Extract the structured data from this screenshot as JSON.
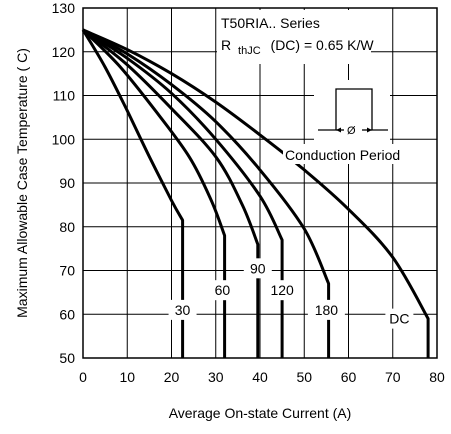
{
  "chart_data": {
    "type": "line",
    "title": "",
    "xlabel": "Average On-state Current (A)",
    "ylabel": "Maximum Allowable Case Temperature ( C)",
    "xlim": [
      0,
      80
    ],
    "ylim": [
      50,
      130
    ],
    "x_ticks": [
      "0",
      "10",
      "20",
      "30",
      "40",
      "50",
      "60",
      "70",
      "80"
    ],
    "y_ticks": [
      "50",
      "60",
      "70",
      "80",
      "90",
      "100",
      "110",
      "120",
      "130"
    ],
    "grid": true,
    "annotations": {
      "series_line": "T50RIA.. Series",
      "rth_prefix": "R",
      "rth_sub": "thJC",
      "rth_value": "(DC) = 0.65 K/W",
      "conduction_symbol": "Ø",
      "conduction_label": "Conduction Period"
    },
    "series": [
      {
        "name": "30",
        "x": [
          0,
          5,
          10,
          15,
          20,
          22.5
        ],
        "y": [
          125,
          116.5,
          106.5,
          96,
          86,
          81.5
        ]
      },
      {
        "name": "60",
        "x": [
          0,
          8,
          16,
          24,
          29,
          32
        ],
        "y": [
          125,
          117,
          107,
          96,
          86,
          78
        ]
      },
      {
        "name": "90",
        "x": [
          0,
          10,
          20,
          30,
          36,
          39.5
        ],
        "y": [
          125,
          117,
          107,
          96,
          85,
          76
        ]
      },
      {
        "name": "120",
        "x": [
          0,
          10,
          20,
          30,
          40,
          45
        ],
        "y": [
          125,
          118.5,
          110.5,
          100,
          87,
          77
        ]
      },
      {
        "name": "180",
        "x": [
          0,
          10,
          20,
          30,
          40,
          50,
          55.5
        ],
        "y": [
          125,
          119.5,
          112.5,
          104,
          93,
          79.5,
          67
        ]
      },
      {
        "name": "DC",
        "x": [
          0,
          10,
          20,
          30,
          40,
          50,
          60,
          70,
          78
        ],
        "y": [
          125,
          120.5,
          115,
          108.5,
          101,
          93,
          84,
          73,
          59
        ]
      }
    ],
    "series_labels_at": [
      {
        "name": "30",
        "x": 22.5,
        "y": 61
      },
      {
        "name": "60",
        "x": 31.5,
        "y": 65.5
      },
      {
        "name": "90",
        "x": 39.5,
        "y": 70.5
      },
      {
        "name": "120",
        "x": 45,
        "y": 65.5
      },
      {
        "name": "180",
        "x": 55,
        "y": 61
      },
      {
        "name": "DC",
        "x": 71.5,
        "y": 59
      }
    ]
  }
}
